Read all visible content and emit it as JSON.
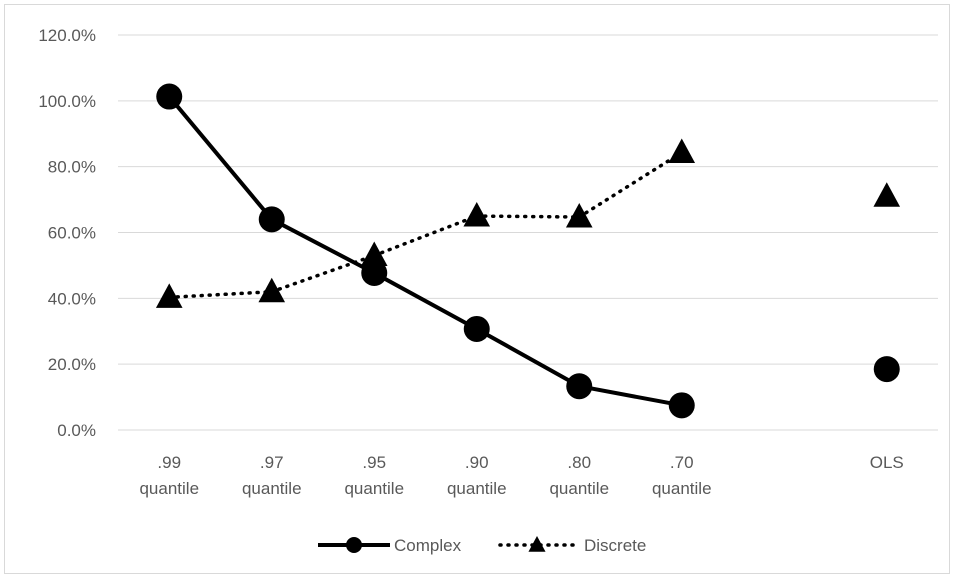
{
  "chart_data": {
    "type": "line",
    "categories": [
      [
        ".99",
        "quantile"
      ],
      [
        ".97",
        "quantile"
      ],
      [
        ".95",
        "quantile"
      ],
      [
        ".90",
        "quantile"
      ],
      [
        ".80",
        "quantile"
      ],
      [
        ".70",
        "quantile"
      ],
      [
        "",
        ""
      ],
      [
        "OLS",
        ""
      ]
    ],
    "series": [
      {
        "name": "Complex",
        "values": [
          1.013,
          0.64,
          0.477,
          0.307,
          0.133,
          0.075,
          null,
          0.185
        ],
        "line": "solid",
        "marker": "circle",
        "color": "#000000"
      },
      {
        "name": "Discrete",
        "values": [
          0.403,
          0.42,
          0.53,
          0.65,
          0.647,
          0.843,
          null,
          0.71
        ],
        "line": "dotted",
        "marker": "triangle",
        "color": "#000000"
      }
    ],
    "ylim": [
      0,
      1.2
    ],
    "yticks": [
      "0.0%",
      "20.0%",
      "40.0%",
      "60.0%",
      "80.0%",
      "100.0%",
      "120.0%"
    ],
    "ytick_values": [
      0,
      0.2,
      0.4,
      0.6,
      0.8,
      1.0,
      1.2
    ],
    "grid": true,
    "legend_position": "bottom"
  }
}
